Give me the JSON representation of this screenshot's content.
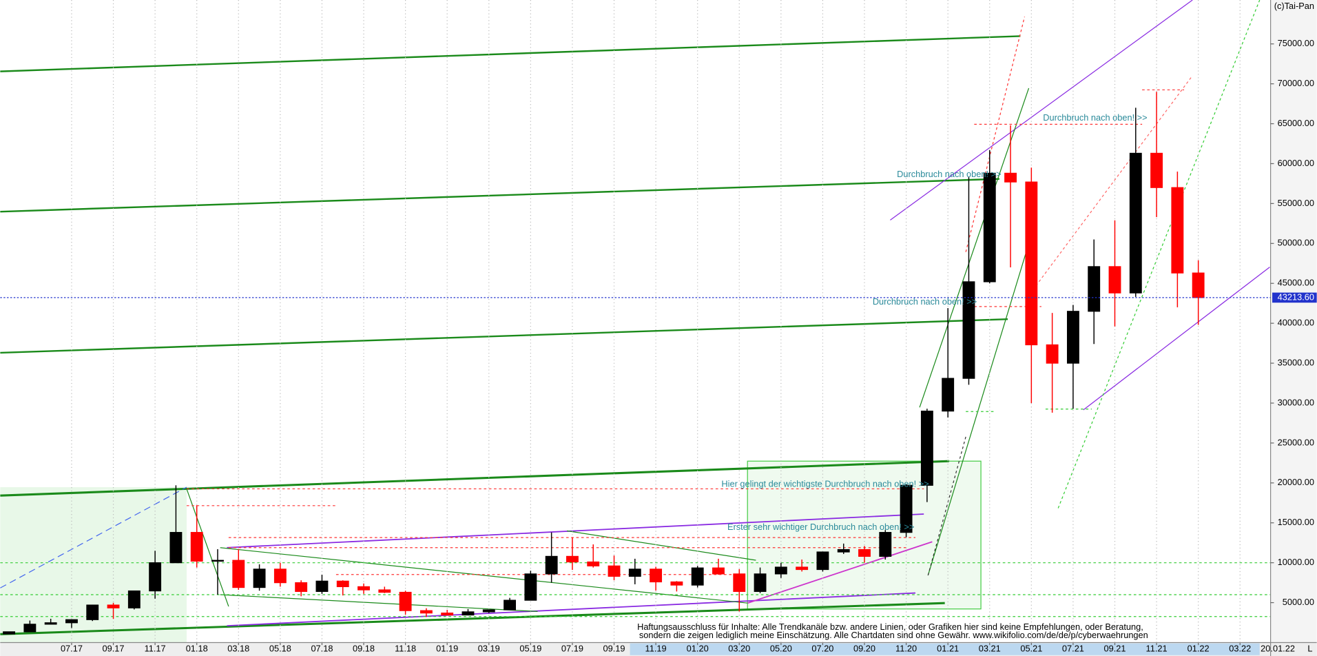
{
  "chart_data": {
    "type": "candlestick",
    "title": "(c)Tai-Pan",
    "categories": [
      null,
      null,
      null,
      "07.17",
      null,
      "09.17",
      null,
      "11.17",
      null,
      "01.18",
      null,
      "03.18",
      null,
      "05.18",
      null,
      "07.18",
      null,
      "09.18",
      null,
      "11.18",
      null,
      "01.19",
      null,
      "03.19",
      null,
      "05.19",
      null,
      "07.19",
      null,
      "09.19",
      null,
      "11.19",
      null,
      "01.20",
      null,
      "03.20",
      null,
      "05.20",
      null,
      "07.20",
      null,
      "09.20",
      null,
      "11.20",
      null,
      "01.21",
      null,
      "03.21",
      null,
      "05.21",
      null,
      "07.21",
      null,
      "09.21",
      null,
      "11.21",
      null,
      "01.22",
      null,
      "03.22"
    ],
    "open": [
      1080,
      1350,
      2300,
      2480,
      2870,
      4700,
      4340,
      6470,
      10000,
      13800,
      10200,
      10300,
      6900,
      9200,
      7500,
      6400,
      7700,
      7000,
      6600,
      6300,
      4000,
      3700,
      3450,
      3850,
      4100,
      5300,
      8600,
      10800,
      10100,
      9600,
      8300,
      9200,
      7600,
      7200,
      9350,
      8600,
      6400,
      8600,
      9450,
      9150,
      11350,
      11650,
      10800,
      13800,
      19700,
      29000,
      33100,
      45200,
      58800,
      57700,
      37300,
      35000,
      41500,
      47100,
      43800,
      61300,
      57000,
      46300,
      null,
      null
    ],
    "high": [
      1350,
      2760,
      2980,
      2900,
      4750,
      4980,
      6470,
      11500,
      19700,
      17200,
      11700,
      11700,
      9800,
      10000,
      7800,
      8500,
      7800,
      7400,
      7000,
      6500,
      4300,
      4100,
      4200,
      4100,
      5600,
      9000,
      13800,
      13200,
      12300,
      10900,
      10500,
      9500,
      7700,
      9600,
      10500,
      9200,
      9400,
      10000,
      10400,
      11400,
      12400,
      12100,
      14100,
      19800,
      29300,
      41900,
      58300,
      61700,
      64800,
      59500,
      41300,
      42300,
      50500,
      52900,
      67000,
      69000,
      59000,
      47900,
      null,
      null
    ],
    "low": [
      1080,
      1350,
      2300,
      1830,
      2700,
      2970,
      4150,
      5500,
      10000,
      9400,
      6000,
      6600,
      6500,
      7000,
      5800,
      6100,
      5900,
      6100,
      6200,
      3500,
      3200,
      3400,
      3400,
      3700,
      4100,
      5300,
      7500,
      9100,
      9400,
      7800,
      7300,
      6500,
      6400,
      6900,
      8500,
      3900,
      6200,
      8100,
      8900,
      8900,
      11100,
      10000,
      10400,
      13200,
      17600,
      28200,
      32300,
      45000,
      47000,
      30000,
      28800,
      29300,
      37400,
      39600,
      43300,
      53300,
      42000,
      39800,
      null,
      null
    ],
    "close": [
      1350,
      2300,
      2480,
      2870,
      4700,
      4340,
      6470,
      10000,
      13800,
      10200,
      10300,
      6900,
      9200,
      7500,
      6400,
      7700,
      7000,
      6600,
      6300,
      4000,
      3700,
      3450,
      3850,
      4100,
      5300,
      8600,
      10800,
      10100,
      9600,
      8300,
      9200,
      7600,
      7200,
      9350,
      8600,
      6400,
      8600,
      9450,
      9150,
      11350,
      11650,
      10800,
      13800,
      19700,
      29000,
      33100,
      45200,
      58800,
      57700,
      37300,
      35000,
      41500,
      47100,
      43800,
      61300,
      57000,
      46300,
      43213.6,
      null,
      null
    ],
    "up_color": "#000000",
    "down_color": "#ff0000",
    "ylim": [
      0,
      80500
    ],
    "yticks": [
      {
        "value": 5000,
        "label": "5000.00"
      },
      {
        "value": 10000,
        "label": "10000.00"
      },
      {
        "value": 15000,
        "label": "15000.00"
      },
      {
        "value": 20000,
        "label": "20000.00"
      },
      {
        "value": 25000,
        "label": "25000.00"
      },
      {
        "value": 30000,
        "label": "30000.00"
      },
      {
        "value": 35000,
        "label": "35000.00"
      },
      {
        "value": 40000,
        "label": "40000.00"
      },
      {
        "value": 45000,
        "label": "45000.00"
      },
      {
        "value": 50000,
        "label": "50000.00"
      },
      {
        "value": 55000,
        "label": "55000.00"
      },
      {
        "value": 60000,
        "label": "60000.00"
      },
      {
        "value": 65000,
        "label": "65000.00"
      },
      {
        "value": 70000,
        "label": "70000.00"
      },
      {
        "value": 75000,
        "label": "75000.00"
      }
    ],
    "last_price": {
      "value": 43213.6,
      "label": "43213.60"
    },
    "grid": true,
    "annotations": [
      "Durchbruch nach oben! >>",
      "Durchbruch nach oben! >>",
      "Durchbruch nach oben! >>",
      "Hier gelingt der wichtigste Durchbruch nach oben! >>",
      "Erster sehr wichtiger Durchbruch nach oben! >>"
    ],
    "disclaimer": [
      "Haftungsausschluss für Inhalte: Alle Trendkanäle bzw. andere Linien, oder Grafiken hier sind keine Empfehlungen, oder Beratung,",
      "sondern die zeigen lediglich meine  Einschätzung. Alle Chartdaten sind ohne Gewähr.  www.wikifolio.com/de/de/p/cyberwaehrungen"
    ],
    "date": "20.01.22",
    "scale_mode": "L"
  }
}
